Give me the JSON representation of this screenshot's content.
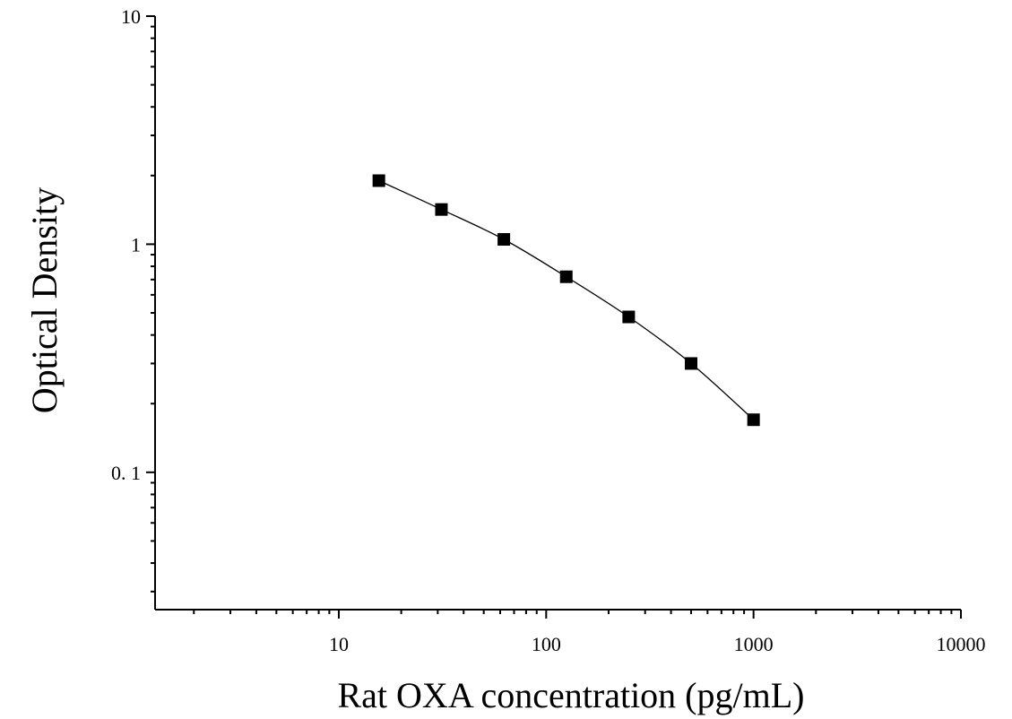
{
  "chart_data": {
    "type": "scatter",
    "title": "",
    "xlabel": "Rat OXA concentration (pg/mL)",
    "ylabel": "Optical Density",
    "x_scale": "log",
    "y_scale": "log",
    "xlim": [
      1.3,
      10000
    ],
    "ylim": [
      0.025,
      10
    ],
    "x_ticks": [
      10,
      100,
      1000,
      10000
    ],
    "x_tick_labels": [
      "10",
      "100",
      "1000",
      "10000"
    ],
    "y_ticks": [
      0.1,
      1,
      10
    ],
    "y_tick_labels": [
      "0. 1",
      "1",
      "10"
    ],
    "grid": false,
    "legend": false,
    "series": [
      {
        "x": [
          15.6,
          31.25,
          62.5,
          125,
          250,
          500,
          1000
        ],
        "y": [
          1.9,
          1.42,
          1.05,
          0.72,
          0.48,
          0.3,
          0.17
        ],
        "marker": "square",
        "color": "#000000",
        "fit_line": true
      }
    ]
  }
}
